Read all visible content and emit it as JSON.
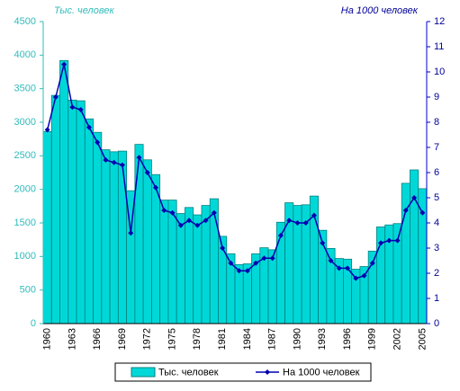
{
  "chart_data": {
    "type": "bar_line",
    "y_label": "Тыс. человек",
    "y2_label": "На 1000 человек",
    "categories": [
      "1960",
      null,
      null,
      "1963",
      null,
      null,
      "1966",
      null,
      null,
      "1969",
      null,
      null,
      "1972",
      null,
      null,
      "1975",
      null,
      null,
      "1978",
      null,
      null,
      "1981",
      null,
      null,
      "1984",
      null,
      null,
      "1987",
      null,
      null,
      "1990",
      null,
      null,
      "1993",
      null,
      null,
      "1996",
      null,
      null,
      "1999",
      null,
      null,
      "2002",
      null,
      null,
      "2005"
    ],
    "series": [
      {
        "name": "Тыс. человек",
        "color": "#00d8d8",
        "axis": "y",
        "values": [
          2860,
          3400,
          3920,
          3330,
          3320,
          3050,
          2850,
          2590,
          2560,
          2570,
          1980,
          2670,
          2440,
          2220,
          1840,
          1840,
          1640,
          1730,
          1620,
          1760,
          1860,
          1300,
          1040,
          880,
          890,
          1040,
          1130,
          1100,
          1510,
          1800,
          1760,
          1770,
          1900,
          1390,
          1120,
          970,
          960,
          810,
          850,
          1080,
          1440,
          1470,
          1490,
          2090,
          2290,
          2010
        ]
      },
      {
        "name": "На 1000 человек",
        "color": "#0000b0",
        "axis": "y2",
        "values": [
          7.7,
          9.0,
          10.3,
          8.6,
          8.5,
          7.8,
          7.2,
          6.5,
          6.4,
          6.3,
          3.6,
          6.6,
          6.0,
          5.4,
          4.5,
          4.4,
          3.9,
          4.1,
          3.9,
          4.1,
          4.4,
          3.0,
          2.4,
          2.1,
          2.1,
          2.4,
          2.6,
          2.6,
          3.5,
          4.1,
          4.0,
          4.0,
          4.3,
          3.2,
          2.5,
          2.2,
          2.2,
          1.8,
          1.9,
          2.4,
          3.2,
          3.3,
          3.3,
          4.5,
          5.0,
          4.4
        ]
      }
    ],
    "ylim": [
      0,
      4500
    ],
    "yticks": [
      0,
      500,
      1000,
      1500,
      2000,
      2500,
      3000,
      3500,
      4000,
      4500
    ],
    "y2lim": [
      0,
      12
    ],
    "y2ticks": [
      0,
      1,
      2,
      3,
      4,
      5,
      6,
      7,
      8,
      9,
      10,
      11,
      12
    ],
    "grid": false
  }
}
